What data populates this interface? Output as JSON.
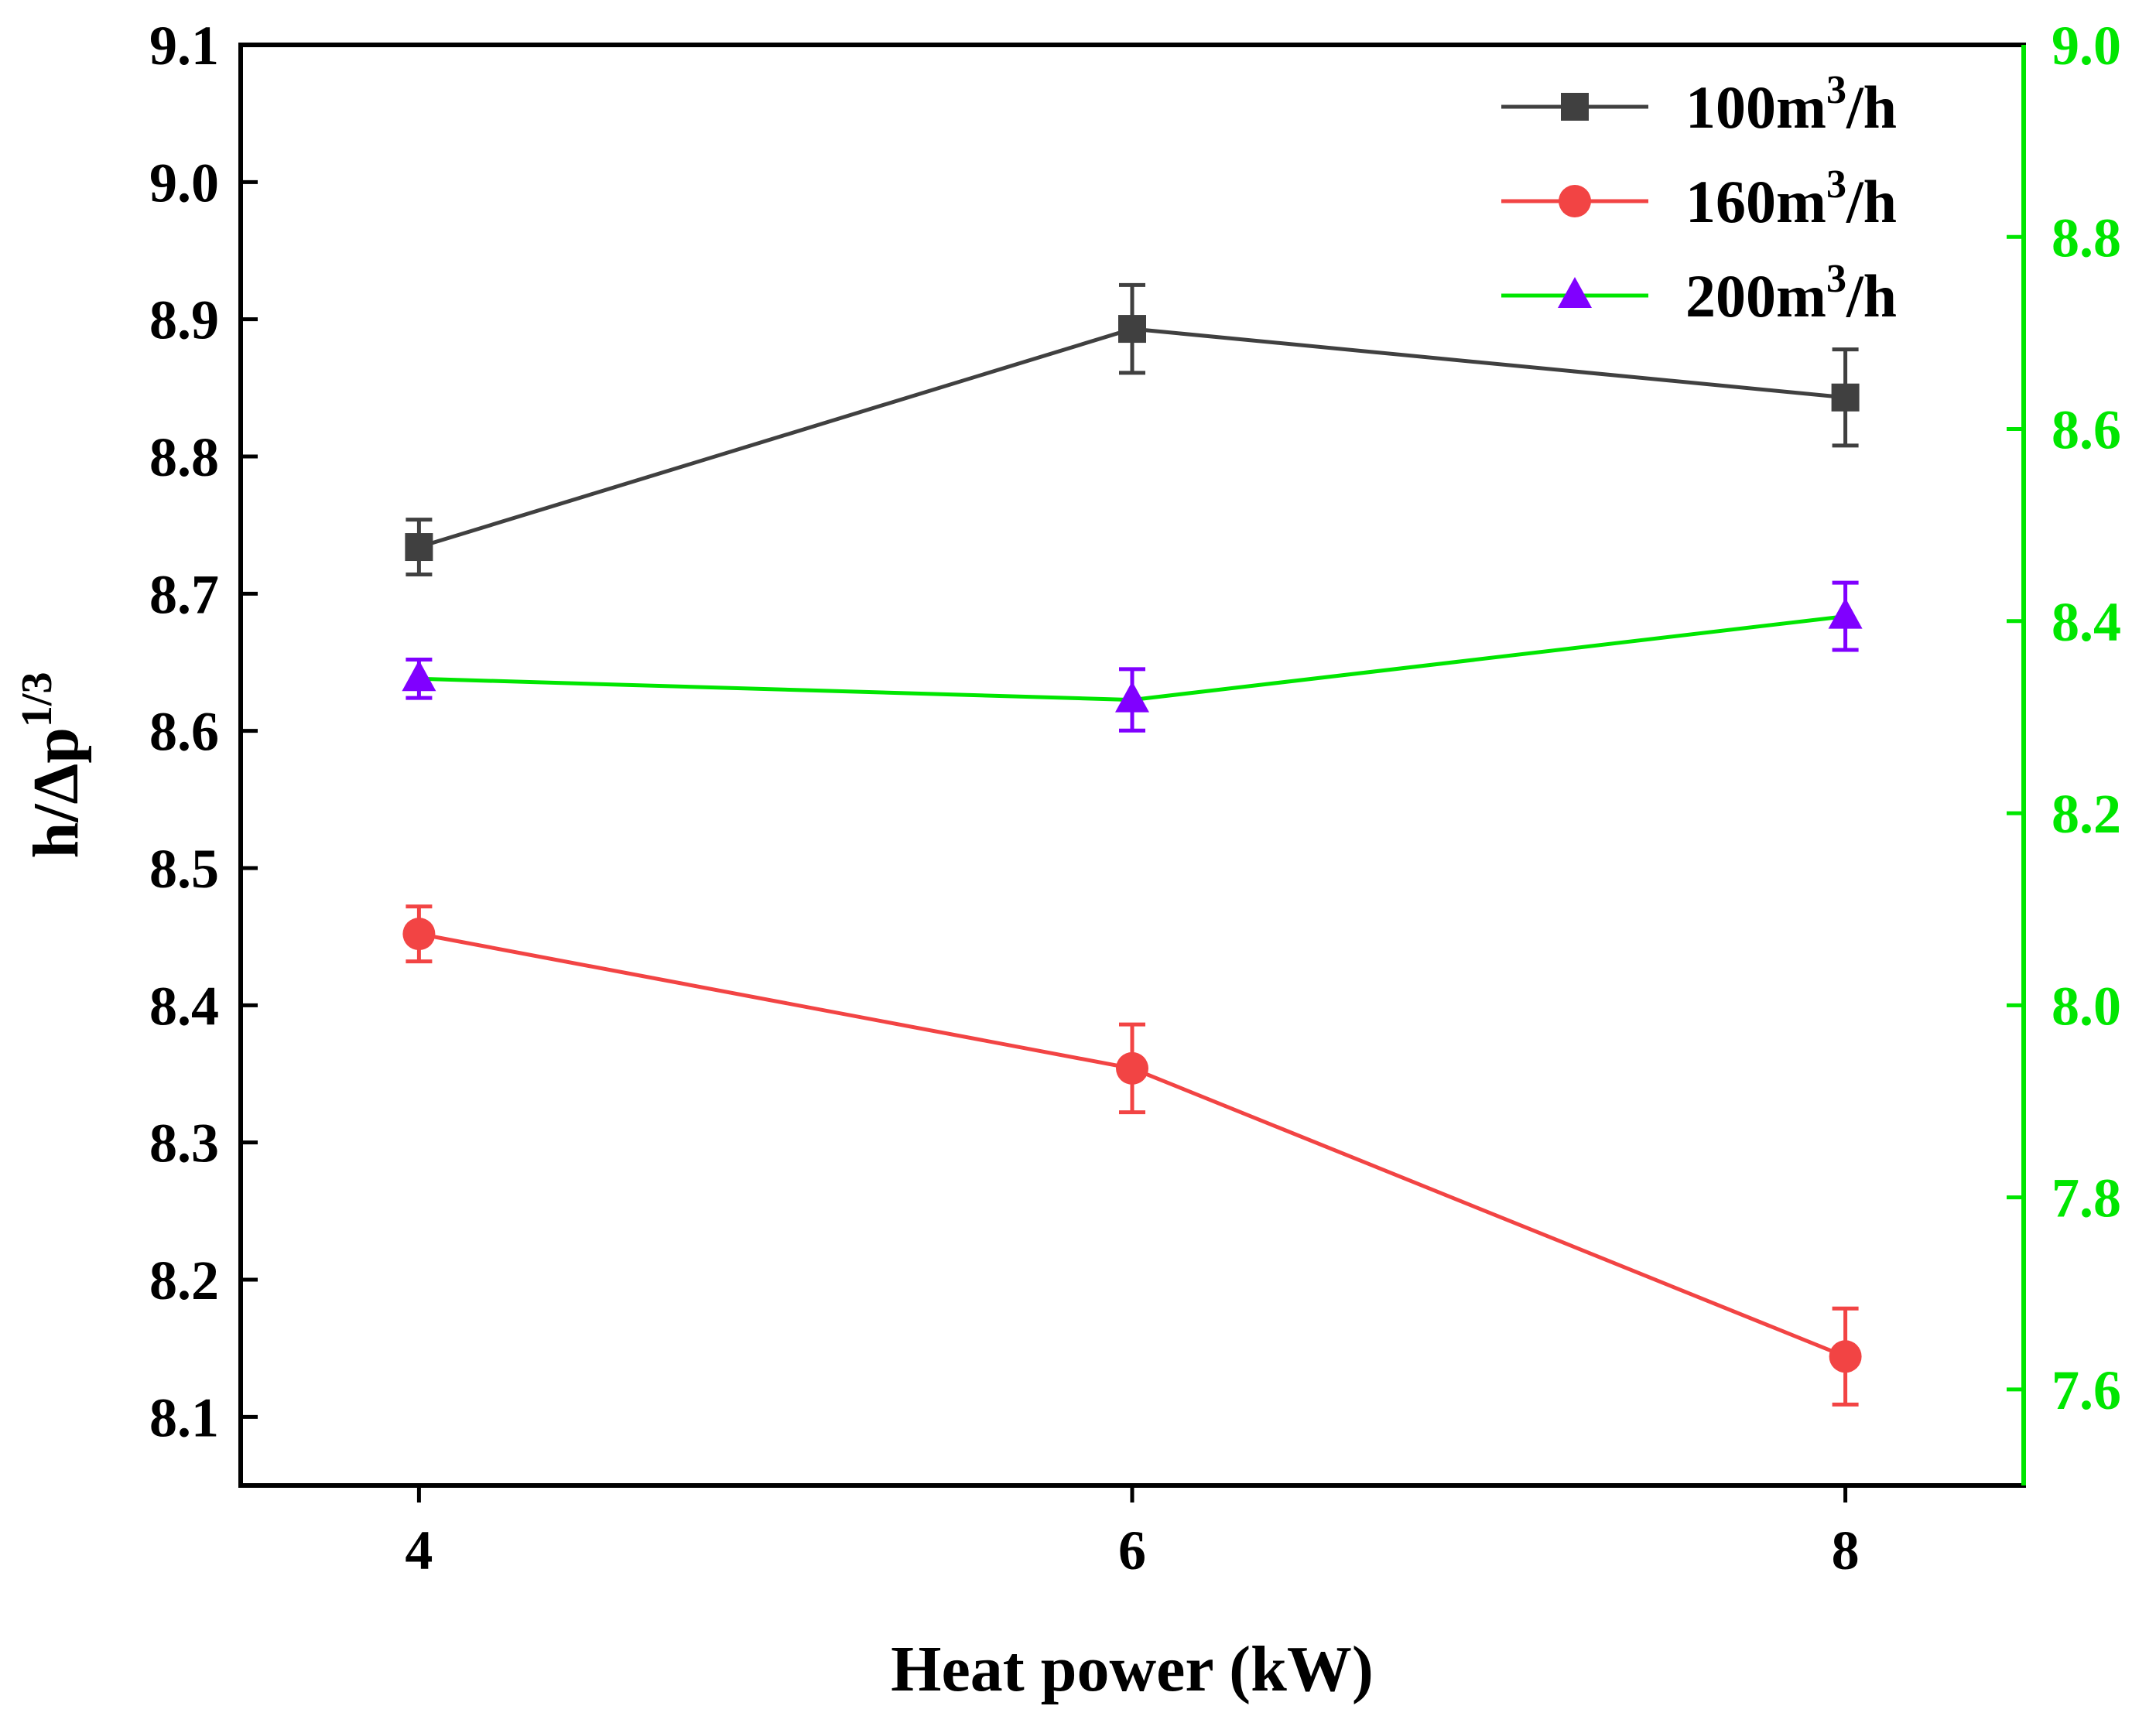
{
  "chart_data": {
    "type": "line",
    "xlabel": "Heat power (kW)",
    "ylabel": "h/Δp",
    "ylabel_sup": "1/3",
    "x": [
      4,
      6,
      8
    ],
    "xlim": [
      3.5,
      8.5
    ],
    "ylim_left": [
      8.05,
      9.1
    ],
    "ylim_right": [
      7.5,
      9.0
    ],
    "left_ticks": [
      "8.1",
      "8.2",
      "8.3",
      "8.4",
      "8.5",
      "8.6",
      "8.7",
      "8.8",
      "8.9",
      "9.0",
      "9.1"
    ],
    "right_ticks": [
      "7.6",
      "7.8",
      "8.0",
      "8.2",
      "8.4",
      "8.6",
      "8.8",
      "9.0"
    ],
    "x_ticks": [
      "4",
      "6",
      "8"
    ],
    "colors": {
      "axis_left": "#000000",
      "axis_right": "#00e600"
    },
    "legend_position": "top-right",
    "series": [
      {
        "name": "100m",
        "name_sup": "3",
        "name_suffix": "/h",
        "axis": "left",
        "line_color": "#404040",
        "marker_color": "#404040",
        "marker": "square",
        "values": [
          8.734,
          8.893,
          8.843
        ],
        "errors": [
          0.02,
          0.032,
          0.035
        ]
      },
      {
        "name": "160m",
        "name_sup": "3",
        "name_suffix": "/h",
        "axis": "left",
        "line_color": "#f24444",
        "marker_color": "#f24444",
        "marker": "circle",
        "values": [
          8.452,
          8.354,
          8.144
        ],
        "errors": [
          0.02,
          0.032,
          0.035
        ]
      },
      {
        "name": "200m",
        "name_sup": "3",
        "name_suffix": "/h",
        "axis": "right",
        "line_color": "#00e600",
        "marker_color": "#8000ff",
        "marker": "triangle",
        "values": [
          8.34,
          8.318,
          8.405
        ],
        "errors": [
          0.02,
          0.032,
          0.035
        ]
      }
    ]
  }
}
